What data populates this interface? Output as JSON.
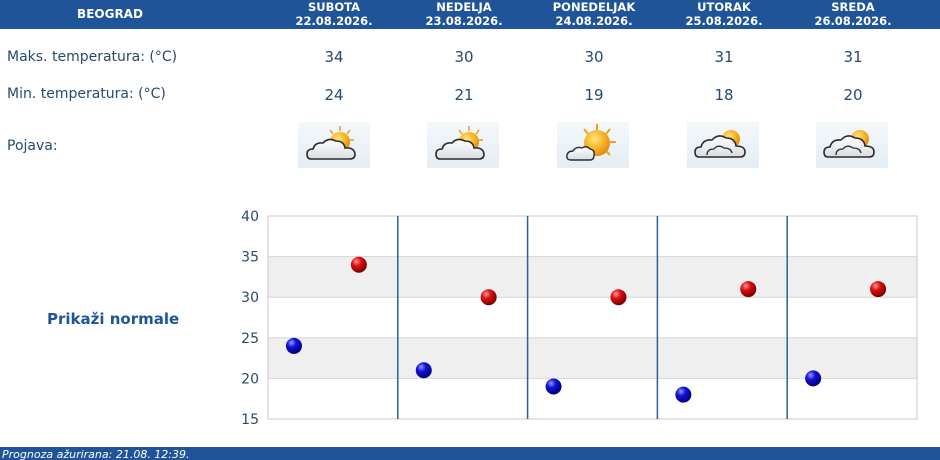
{
  "location": "BEOGRAD",
  "days": [
    {
      "name": "SUBOTA",
      "date": "22.08.2026.",
      "max": "34",
      "min": "24",
      "icon": "partly-cloudy-icon"
    },
    {
      "name": "NEDELJA",
      "date": "23.08.2026.",
      "max": "30",
      "min": "21",
      "icon": "partly-cloudy-icon"
    },
    {
      "name": "PONEDELJAK",
      "date": "24.08.2026.",
      "max": "30",
      "min": "19",
      "icon": "mostly-sunny-icon"
    },
    {
      "name": "UTORAK",
      "date": "25.08.2026.",
      "max": "31",
      "min": "18",
      "icon": "cloudy-sun-icon"
    },
    {
      "name": "SREDA",
      "date": "26.08.2026.",
      "max": "31",
      "min": "20",
      "icon": "cloudy-sun-icon"
    }
  ],
  "labels": {
    "max": "Maks. temperatura: (°C)",
    "min": "Min. temperatura: (°C)",
    "phenomena": "Pojava:"
  },
  "show_normals": "Prikaži normale",
  "footer": "Prognoza ažurirana:  21.08. 12:39.",
  "colors": {
    "header": "#1f5598",
    "max_marker": "#cc0000",
    "min_marker": "#0000cc"
  },
  "chart_data": {
    "type": "scatter",
    "categories": [
      "SUBOTA",
      "NEDELJA",
      "PONEDELJAK",
      "UTORAK",
      "SREDA"
    ],
    "series": [
      {
        "values": [
          34,
          30,
          30,
          31,
          31
        ],
        "color": "#cc0000"
      },
      {
        "values": [
          24,
          21,
          19,
          18,
          20
        ],
        "color": "#0000cc"
      }
    ],
    "ylim": [
      15,
      40
    ],
    "yticks": [
      "15",
      "20",
      "25",
      "30",
      "35",
      "40"
    ],
    "grid": true
  }
}
